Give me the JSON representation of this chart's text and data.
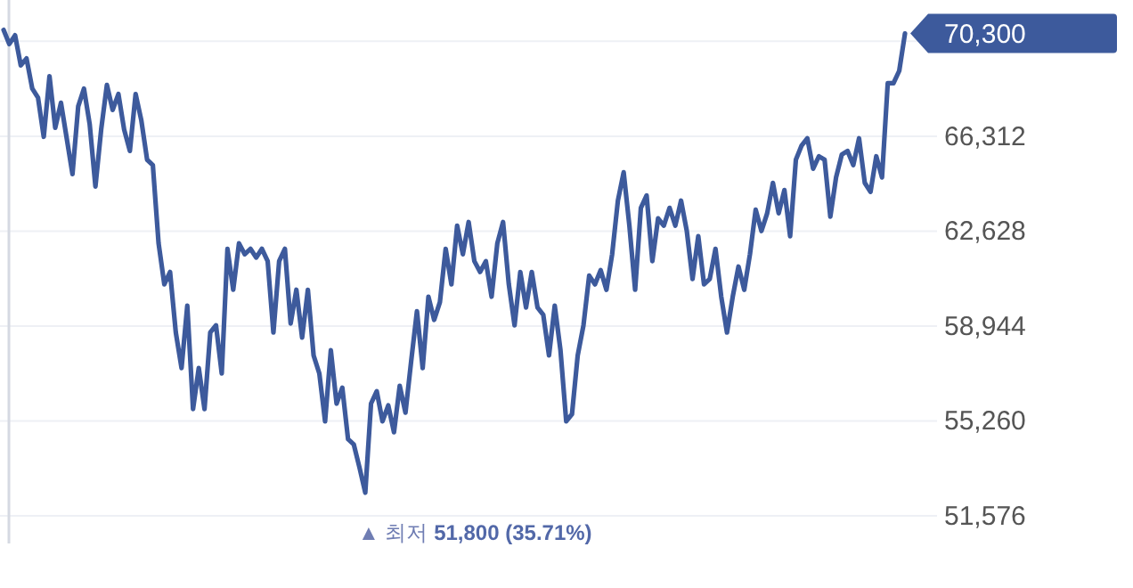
{
  "chart_data": {
    "type": "line",
    "categories": [
      null,
      null,
      null,
      null,
      null,
      null,
      null,
      null,
      null,
      null,
      null,
      null,
      null,
      null,
      null,
      null,
      null,
      null,
      null,
      null,
      null,
      null,
      null,
      null,
      null,
      null,
      null,
      null,
      null,
      null,
      null,
      null,
      null,
      null,
      null,
      null,
      null,
      null,
      null,
      null,
      null,
      null,
      null,
      null,
      null,
      null,
      null,
      null,
      null,
      null,
      null,
      null,
      null,
      null,
      null,
      null,
      null,
      null,
      null,
      null,
      null,
      null,
      null,
      null,
      null,
      null,
      null,
      null,
      null,
      null,
      null,
      null,
      null,
      null,
      null,
      null,
      null,
      null,
      null,
      null,
      null,
      null,
      null,
      null,
      null,
      null,
      null,
      null,
      null,
      null,
      null,
      null,
      null,
      null,
      null,
      null,
      null,
      null,
      null,
      null,
      null,
      null,
      null,
      null,
      null,
      null,
      null,
      null,
      null,
      null,
      null,
      null,
      null,
      null,
      null,
      null,
      null,
      null,
      null,
      null,
      null,
      null,
      null,
      null,
      null,
      null,
      null,
      null,
      null,
      null,
      null,
      null,
      null,
      null,
      null,
      null,
      null,
      null,
      null,
      null,
      null,
      null,
      null,
      null,
      null,
      null,
      null,
      null,
      null,
      null,
      null,
      null,
      null,
      null,
      null,
      null,
      null,
      null
    ],
    "series": [
      {
        "color": "#3d5a9c",
        "values": [
          70440,
          69890,
          70230,
          69060,
          69330,
          68160,
          67810,
          66290,
          68640,
          66640,
          67610,
          66230,
          64840,
          67470,
          68160,
          66780,
          64360,
          66570,
          68300,
          67330,
          67950,
          66570,
          65740,
          67950,
          66920,
          65400,
          65190,
          62150,
          60560,
          61040,
          58690,
          57310,
          59730,
          55720,
          57310,
          55720,
          58690,
          58970,
          57100,
          61940,
          60350,
          62150,
          61730,
          61940,
          61600,
          61940,
          61460,
          58690,
          61460,
          61940,
          59040,
          60350,
          58490,
          60350,
          57800,
          57100,
          55240,
          58000,
          55930,
          56550,
          54550,
          54340,
          53440,
          52470,
          55930,
          56410,
          55240,
          55860,
          54820,
          56620,
          55580,
          57590,
          59520,
          57310,
          60080,
          59180,
          59870,
          61940,
          60560,
          62840,
          61730,
          62980,
          61460,
          61040,
          61460,
          60080,
          62150,
          62980,
          60560,
          58970,
          61040,
          59660,
          61040,
          59660,
          59380,
          57800,
          59730,
          58000,
          55240,
          55520,
          57800,
          58970,
          60900,
          60560,
          61110,
          60350,
          61730,
          63810,
          64910,
          62840,
          60350,
          63530,
          64010,
          61460,
          63120,
          62840,
          63530,
          62840,
          63810,
          62630,
          60770,
          62430,
          60560,
          60770,
          61940,
          60080,
          58690,
          60080,
          61250,
          60350,
          61730,
          63460,
          62630,
          63320,
          64500,
          63320,
          64220,
          62430,
          65400,
          65950,
          66230,
          65050,
          65530,
          65400,
          63190,
          64710,
          65600,
          65740,
          65190,
          66230,
          64500,
          64150,
          65530,
          64710,
          68370,
          68370,
          68850,
          70300
        ]
      }
    ],
    "ylim": [
      50500,
      71600
    ],
    "yticks": [
      {
        "value": 51576,
        "label": "51,576"
      },
      {
        "value": 55260,
        "label": "55,260"
      },
      {
        "value": 58944,
        "label": "58,944"
      },
      {
        "value": 62628,
        "label": "62,628"
      },
      {
        "value": 66312,
        "label": "66,312"
      },
      {
        "value": 69996,
        "label": null
      }
    ],
    "grid": "y",
    "line_style": "solid",
    "annotations": [
      "70,300",
      "▲ 최저 **51,800 (35.71%)**"
    ]
  }
}
